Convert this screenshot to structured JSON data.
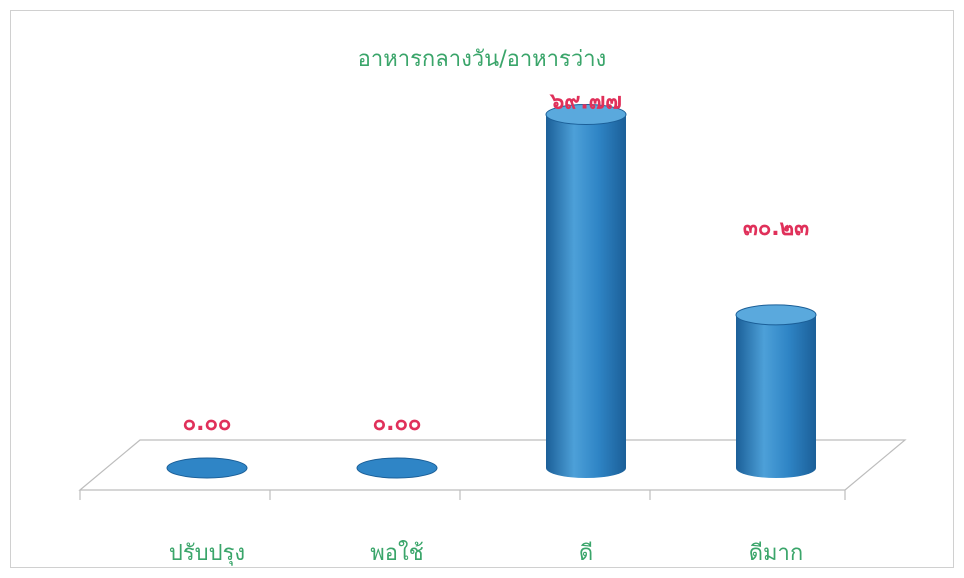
{
  "chart_data": {
    "type": "bar",
    "title": "อาหารกลางวัน/อาหารว่าง",
    "categories": [
      "ปรับปรุง",
      "พอใช้",
      "ดี",
      "ดีมาก"
    ],
    "values": [
      0.0,
      0.0,
      69.77,
      30.23
    ],
    "value_labels": [
      "๐.๐๐",
      "๐.๐๐",
      "๖๙.๗๗",
      "๓๐.๒๓"
    ],
    "xlabel": "",
    "ylabel": "",
    "ylim": [
      0,
      75
    ],
    "grid": false,
    "legend": "none",
    "style": "3d-cylinder"
  },
  "colors": {
    "bar": "#2f85c6",
    "bar_dark": "#1b5f98",
    "bar_light": "#5aa9dd",
    "value_label": "#e0305a",
    "text": "#3aa56a",
    "floor": "#bdbdbd"
  }
}
